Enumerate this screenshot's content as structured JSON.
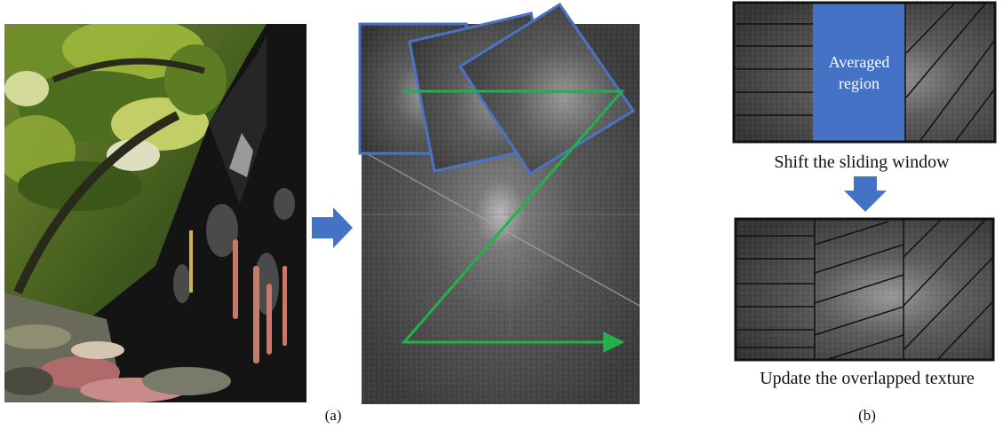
{
  "panel_a": {
    "caption": "(a)"
  },
  "panel_b": {
    "caption": "(b)",
    "averaged_region_line1": "Averaged",
    "averaged_region_line2": "region",
    "step1_text": "Shift the sliding window",
    "step2_text": "Update the overlapped texture"
  },
  "colors": {
    "window_border": "#4a73c8",
    "arrow_blue": "#4472c4",
    "path_green": "#1fb34a",
    "averaged_fill": "#4472c4"
  },
  "icons": {
    "right_arrow": "right-arrow-icon",
    "down_arrow": "down-arrow-icon"
  }
}
